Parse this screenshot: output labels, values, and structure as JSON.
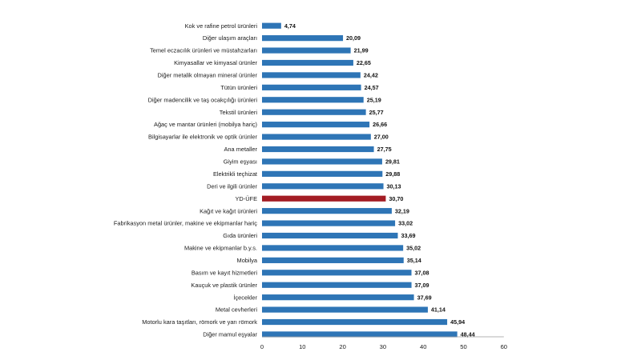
{
  "chart_data": {
    "type": "bar",
    "orientation": "horizontal",
    "categories": [
      "Kok ve rafine petrol ürünleri",
      "Diğer ulaşım araçları",
      "Temel eczacılık ürünleri ve müstahzarları",
      "Kimyasallar ve kimyasal ürünler",
      "Diğer metalik olmayan mineral ürünler",
      "Tütün ürünleri",
      "Diğer madencilik ve taş ocakçılığı ürünleri",
      "Tekstil ürünleri",
      "Ağaç ve mantar ürünleri (mobilya hariç)",
      "Bilgisayarlar ile elektronik ve optik ürünler",
      "Ana metaller",
      "Giyim eşyası",
      "Elektrikli teçhizat",
      "Deri ve ilgili ürünler",
      "YD-ÜFE",
      "Kağıt ve kağıt ürünleri",
      "Fabrikasyon metal ürünler, makine ve ekipmanlar hariç",
      "Gıda ürünleri",
      "Makine ve ekipmanlar b.y.s.",
      "Mobilya",
      "Basım ve kayıt hizmetleri",
      "Kauçuk ve plastik ürünler",
      "İçecekler",
      "Metal cevherleri",
      "Motorlu kara taşıtları, römork ve yarı römork",
      "Diğer mamul eşyalar"
    ],
    "values": [
      4.74,
      20.09,
      21.99,
      22.65,
      24.42,
      24.57,
      25.19,
      25.77,
      26.66,
      27.0,
      27.75,
      29.81,
      29.88,
      30.13,
      30.7,
      32.19,
      33.02,
      33.69,
      35.02,
      35.14,
      37.08,
      37.09,
      37.69,
      41.14,
      45.94,
      48.44
    ],
    "value_labels": [
      "4,74",
      "20,09",
      "21,99",
      "22,65",
      "24,42",
      "24,57",
      "25,19",
      "25,77",
      "26,66",
      "27,00",
      "27,75",
      "29,81",
      "29,88",
      "30,13",
      "30,70",
      "32,19",
      "33,02",
      "33,69",
      "35,02",
      "35,14",
      "37,08",
      "37,09",
      "37,69",
      "41,14",
      "45,94",
      "48,44"
    ],
    "highlight_category": "YD-ÜFE",
    "xlim": [
      0,
      60
    ],
    "xticks": [
      0,
      10,
      20,
      30,
      40,
      50,
      60
    ],
    "grid": false,
    "legend": "none",
    "colors": {
      "bar": "#2e75b6",
      "highlight": "#a31c24"
    }
  }
}
